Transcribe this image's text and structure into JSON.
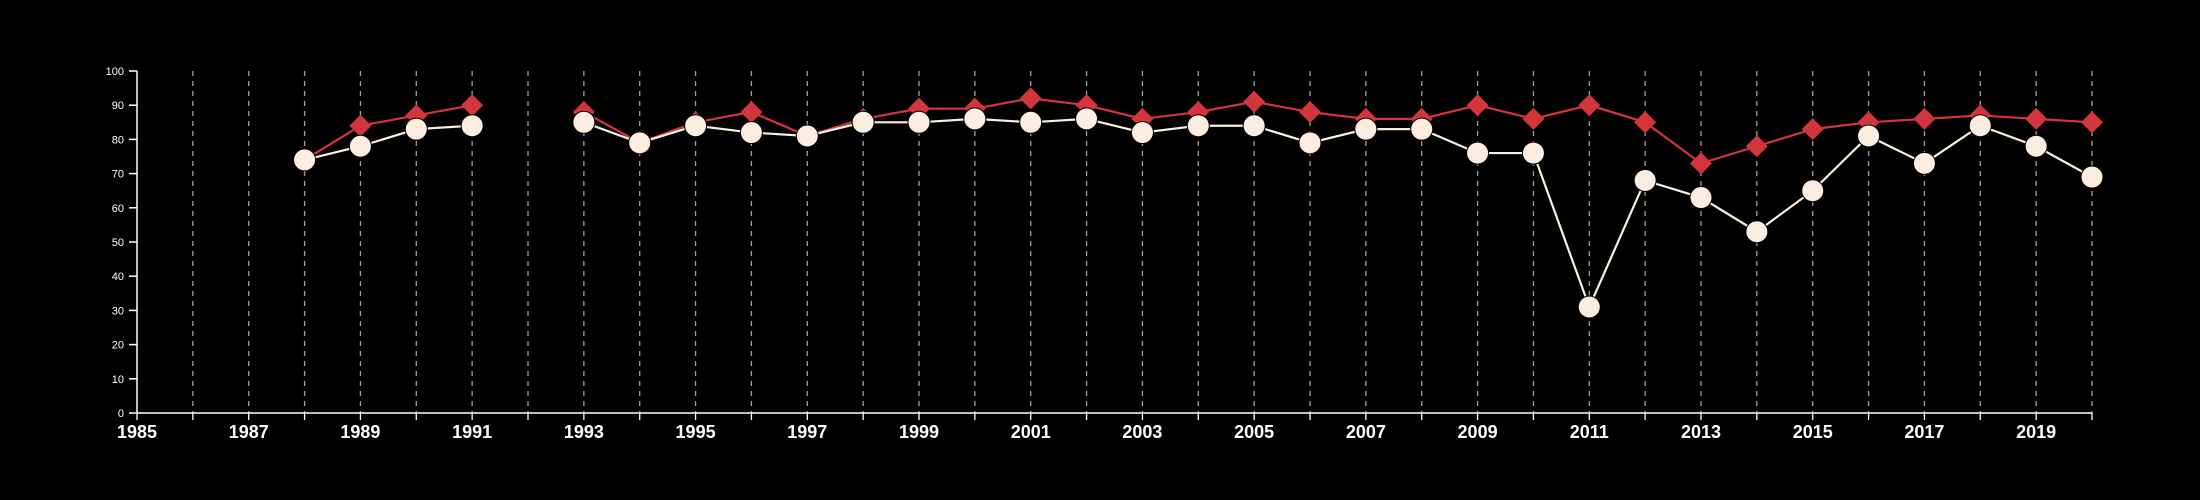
{
  "chart_data": {
    "type": "line",
    "title": "",
    "xlabel": "",
    "ylabel": "",
    "xlim": [
      1985,
      2020
    ],
    "ylim": [
      0,
      100
    ],
    "x_ticks": [
      1985,
      1987,
      1989,
      1991,
      1993,
      1995,
      1997,
      1999,
      2001,
      2003,
      2005,
      2007,
      2009,
      2011,
      2013,
      2015,
      2017,
      2019
    ],
    "y_ticks": [
      0,
      10,
      20,
      30,
      40,
      50,
      60,
      70,
      80,
      90,
      100
    ],
    "vertical_gridlines": "dashed, every year",
    "legend": "none",
    "background": "#000000",
    "series": [
      {
        "color": "#d4343c",
        "marker": "diamond",
        "points": [
          {
            "x": 1988,
            "y": 74
          },
          {
            "x": 1989,
            "y": 84
          },
          {
            "x": 1990,
            "y": 87
          },
          {
            "x": 1991,
            "y": 90
          },
          {
            "x": 1993,
            "y": 88
          },
          {
            "x": 1994,
            "y": 79
          },
          {
            "x": 1995,
            "y": 85
          },
          {
            "x": 1996,
            "y": 88
          },
          {
            "x": 1997,
            "y": 81
          },
          {
            "x": 1998,
            "y": 86
          },
          {
            "x": 1999,
            "y": 89
          },
          {
            "x": 2000,
            "y": 89
          },
          {
            "x": 2001,
            "y": 92
          },
          {
            "x": 2002,
            "y": 90
          },
          {
            "x": 2003,
            "y": 86
          },
          {
            "x": 2004,
            "y": 88
          },
          {
            "x": 2005,
            "y": 91
          },
          {
            "x": 2006,
            "y": 88
          },
          {
            "x": 2007,
            "y": 86
          },
          {
            "x": 2008,
            "y": 86
          },
          {
            "x": 2009,
            "y": 90
          },
          {
            "x": 2010,
            "y": 86
          },
          {
            "x": 2011,
            "y": 90
          },
          {
            "x": 2012,
            "y": 85
          },
          {
            "x": 2013,
            "y": 73
          },
          {
            "x": 2014,
            "y": 78
          },
          {
            "x": 2015,
            "y": 83
          },
          {
            "x": 2016,
            "y": 85
          },
          {
            "x": 2017,
            "y": 86
          },
          {
            "x": 2018,
            "y": 87
          },
          {
            "x": 2019,
            "y": 86
          },
          {
            "x": 2020,
            "y": 85
          }
        ]
      },
      {
        "color": "#fbeee0",
        "marker": "circle",
        "points": [
          {
            "x": 1988,
            "y": 74
          },
          {
            "x": 1989,
            "y": 78
          },
          {
            "x": 1990,
            "y": 83
          },
          {
            "x": 1991,
            "y": 84
          },
          {
            "x": 1993,
            "y": 85
          },
          {
            "x": 1994,
            "y": 79
          },
          {
            "x": 1995,
            "y": 84
          },
          {
            "x": 1996,
            "y": 82
          },
          {
            "x": 1997,
            "y": 81
          },
          {
            "x": 1998,
            "y": 85
          },
          {
            "x": 1999,
            "y": 85
          },
          {
            "x": 2000,
            "y": 86
          },
          {
            "x": 2001,
            "y": 85
          },
          {
            "x": 2002,
            "y": 86
          },
          {
            "x": 2003,
            "y": 82
          },
          {
            "x": 2004,
            "y": 84
          },
          {
            "x": 2005,
            "y": 84
          },
          {
            "x": 2006,
            "y": 79
          },
          {
            "x": 2007,
            "y": 83
          },
          {
            "x": 2008,
            "y": 83
          },
          {
            "x": 2009,
            "y": 76
          },
          {
            "x": 2010,
            "y": 76
          },
          {
            "x": 2011,
            "y": 31
          },
          {
            "x": 2012,
            "y": 68
          },
          {
            "x": 2013,
            "y": 63
          },
          {
            "x": 2014,
            "y": 53
          },
          {
            "x": 2015,
            "y": 65
          },
          {
            "x": 2016,
            "y": 81
          },
          {
            "x": 2017,
            "y": 73
          },
          {
            "x": 2018,
            "y": 84
          },
          {
            "x": 2019,
            "y": 78
          },
          {
            "x": 2020,
            "y": 69
          }
        ]
      }
    ]
  }
}
